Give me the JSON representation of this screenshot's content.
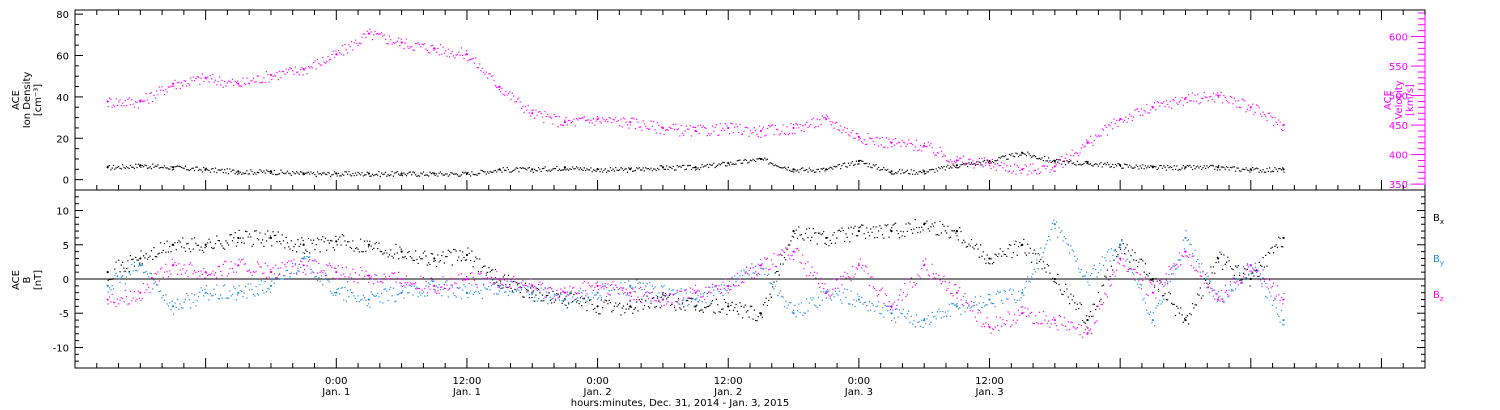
{
  "chart_data": [
    {
      "type": "scatter",
      "panel": "top",
      "ylabel_lines": [
        "ACE",
        "Ion Density",
        "[cm⁻³]"
      ],
      "y2label_lines": [
        "ACE",
        "Velocity",
        "[km/s]"
      ],
      "ylim": [
        -5,
        82
      ],
      "yticks": [
        0,
        20,
        40,
        60,
        80
      ],
      "y2lim": [
        340,
        645
      ],
      "y2ticks": [
        350,
        400,
        450,
        500,
        550,
        600
      ],
      "series": [
        {
          "role": "density",
          "axis": "left",
          "color": "#000000",
          "x": [
            -21,
            -18,
            -15,
            -12,
            -9,
            -6,
            -3,
            0,
            3,
            6,
            9,
            12,
            15,
            18,
            21,
            24,
            27,
            30,
            33,
            36,
            39,
            42,
            45,
            48,
            51,
            54,
            57,
            60,
            63,
            66,
            69,
            72,
            75,
            78,
            81,
            84,
            87
          ],
          "y": [
            6,
            7,
            6,
            5,
            4,
            4,
            3,
            3,
            3,
            3,
            3,
            3,
            5,
            5,
            6,
            5,
            5,
            6,
            6,
            8,
            10,
            5,
            5,
            9,
            4,
            4,
            7,
            9,
            13,
            9,
            8,
            7,
            6,
            6,
            6,
            5,
            5
          ]
        },
        {
          "role": "velocity",
          "axis": "right",
          "color": "#ff00ff",
          "x": [
            -21,
            -18,
            -15,
            -12,
            -9,
            -6,
            -3,
            0,
            3,
            6,
            9,
            12,
            15,
            18,
            21,
            24,
            27,
            30,
            33,
            36,
            39,
            42,
            45,
            48,
            51,
            54,
            57,
            60,
            63,
            66,
            69,
            72,
            75,
            78,
            81,
            84,
            87
          ],
          "y": [
            490,
            490,
            520,
            530,
            520,
            535,
            545,
            570,
            605,
            590,
            580,
            570,
            515,
            470,
            455,
            460,
            455,
            445,
            440,
            445,
            440,
            445,
            460,
            430,
            420,
            415,
            390,
            385,
            375,
            380,
            420,
            460,
            480,
            495,
            500,
            480,
            450
          ]
        }
      ]
    },
    {
      "type": "scatter",
      "panel": "bottom",
      "ylabel_lines": [
        "ACE",
        "B",
        "[nT]"
      ],
      "ylim": [
        -13,
        13
      ],
      "yticks": [
        -10,
        -5,
        0,
        5,
        10
      ],
      "series": [
        {
          "name": "Bx",
          "legend_main": "B",
          "legend_sub": "x",
          "color": "#000000",
          "x": [
            -21,
            -18,
            -15,
            -12,
            -9,
            -6,
            -3,
            0,
            3,
            6,
            9,
            12,
            15,
            18,
            21,
            24,
            27,
            30,
            33,
            36,
            39,
            42,
            45,
            48,
            51,
            54,
            57,
            60,
            63,
            66,
            69,
            72,
            75,
            78,
            81,
            84,
            87
          ],
          "y": [
            1,
            3,
            5,
            5,
            6,
            6,
            5,
            5.5,
            5,
            4,
            3,
            3.5,
            0,
            -2,
            -3,
            -4,
            -4,
            -3,
            -4,
            -4,
            -5,
            7,
            6,
            7,
            7,
            8,
            7,
            3,
            5,
            0,
            -6,
            5,
            0,
            -6,
            3,
            0,
            6
          ]
        },
        {
          "name": "By",
          "legend_main": "B",
          "legend_sub": "y",
          "color": "#1f8ce6",
          "x": [
            -21,
            -18,
            -15,
            -12,
            -9,
            -6,
            -3,
            0,
            3,
            6,
            9,
            12,
            15,
            18,
            21,
            24,
            27,
            30,
            33,
            36,
            39,
            42,
            45,
            48,
            51,
            54,
            57,
            60,
            63,
            66,
            69,
            72,
            75,
            78,
            81,
            84,
            87
          ],
          "y": [
            -1,
            2,
            -4,
            -2,
            -2,
            -1,
            3,
            -2,
            -3,
            -2,
            -1,
            -2,
            -1,
            -2,
            -3,
            -2,
            -1,
            -2,
            -3,
            -1,
            2,
            -5,
            -2,
            -3,
            -5,
            -6,
            -4,
            -3,
            -2,
            8,
            0,
            5,
            -6,
            6,
            -3,
            2,
            -6
          ]
        },
        {
          "name": "Bz",
          "legend_main": "B",
          "legend_sub": "z",
          "color": "#ff00ff",
          "x": [
            -21,
            -18,
            -15,
            -12,
            -9,
            -6,
            -3,
            0,
            3,
            6,
            9,
            12,
            15,
            18,
            21,
            24,
            27,
            30,
            33,
            36,
            39,
            42,
            45,
            48,
            51,
            54,
            57,
            60,
            63,
            66,
            69,
            72,
            75,
            78,
            81,
            84,
            87
          ],
          "y": [
            -3,
            -2,
            2,
            1,
            2,
            1,
            2,
            1,
            0.5,
            0,
            -1,
            0,
            0,
            -1,
            -2,
            -1,
            -2,
            -3,
            -2,
            -1,
            2,
            4,
            -2,
            2,
            -4,
            2,
            -2,
            -7,
            -5,
            -6,
            -8,
            3,
            -2,
            4,
            -3,
            2,
            -3
          ]
        }
      ]
    }
  ],
  "x_axis": {
    "xlim": [
      -24,
      100
    ],
    "ticks": [
      {
        "x": 0,
        "time": "0:00",
        "day": "Jan. 1"
      },
      {
        "x": 12,
        "time": "12:00",
        "day": "Jan. 1"
      },
      {
        "x": 24,
        "time": "0:00",
        "day": "Jan. 2"
      },
      {
        "x": 36,
        "time": "12:00",
        "day": "Jan. 2"
      },
      {
        "x": 48,
        "time": "0:00",
        "day": "Jan. 3"
      },
      {
        "x": 60,
        "time": "12:00",
        "day": "Jan. 3"
      }
    ],
    "label": "hours:minutes, Dec. 31, 2014 - Jan.  3, 2015"
  }
}
